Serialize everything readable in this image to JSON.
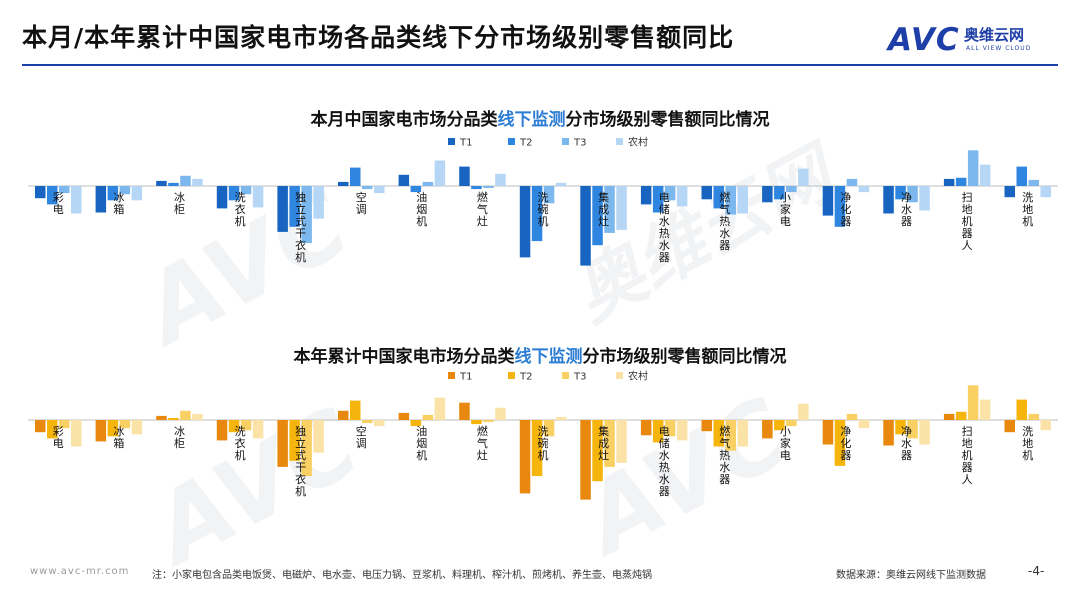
{
  "page": {
    "title": "本月/本年累计中国家电市场各品类线下分市场级别零售额同比",
    "logo": {
      "mark": "AVC",
      "cn": "奥维云网",
      "en": "ALL VIEW CLOUD"
    },
    "watermark": {
      "mark": "AVC",
      "cn": "奥维云网",
      "en": "ALL VIEW CLOUD"
    },
    "footer_site": "www.avc-mr.com",
    "footer_note": "注：小家电包含品类电饭煲、电磁炉、电水壶、电压力锅、豆浆机、料理机、榨汁机、煎烤机、养生壶、电蒸炖锅",
    "footer_source": "数据来源：奥维云网线下监测数据",
    "page_number": "-4-"
  },
  "chart_data": [
    {
      "type": "bar",
      "title_parts": [
        "本月中国家电市场分品类",
        "线下监测",
        "分市场级别零售额同比情况"
      ],
      "categories": [
        "彩电",
        "冰箱",
        "冰柜",
        "洗衣机",
        "独立式干衣机",
        "空调",
        "油烟机",
        "燃气灶",
        "洗碗机",
        "集成灶",
        "电储水热水器",
        "燃气热水器",
        "小家电",
        "净化器",
        "净水器",
        "扫地机器人",
        "洗地机"
      ],
      "series": [
        {
          "name": "T1",
          "color": "#1765c0",
          "values": [
            -12,
            -26,
            5,
            -22,
            -45,
            4,
            11,
            19,
            -70,
            -78,
            -18,
            -13,
            -16,
            -29,
            -27,
            7,
            -11
          ]
        },
        {
          "name": "T2",
          "color": "#2f86e0",
          "values": [
            -18,
            -14,
            3,
            -14,
            -40,
            18,
            -6,
            -3,
            -54,
            -58,
            -26,
            -22,
            -13,
            -40,
            -13,
            8,
            19
          ]
        },
        {
          "name": "T3",
          "color": "#7cb8ee",
          "values": [
            -7,
            -8,
            10,
            -8,
            -56,
            -3,
            4,
            -2,
            -17,
            -46,
            -14,
            -28,
            -6,
            7,
            -16,
            35,
            6
          ]
        },
        {
          "name": "农村",
          "color": "#b5d6f5",
          "values": [
            -27,
            -14,
            7,
            -21,
            -32,
            -7,
            25,
            12,
            3,
            -43,
            -20,
            -27,
            17,
            -6,
            -24,
            21,
            -11
          ]
        }
      ],
      "ylim": [
        -80,
        40
      ]
    },
    {
      "type": "bar",
      "title_parts": [
        "本年累计中国家电市场分品类",
        "线下监测",
        "分市场级别零售额同比情况"
      ],
      "categories": [
        "彩电",
        "冰箱",
        "冰柜",
        "洗衣机",
        "独立式干衣机",
        "空调",
        "油烟机",
        "燃气灶",
        "洗碗机",
        "集成灶",
        "电储水热水器",
        "燃气热水器",
        "小家电",
        "净化器",
        "净水器",
        "扫地机器人",
        "洗地机"
      ],
      "series": [
        {
          "name": "T1",
          "color": "#e8880e",
          "values": [
            -12,
            -21,
            4,
            -20,
            -46,
            9,
            7,
            17,
            -72,
            -78,
            -15,
            -11,
            -18,
            -24,
            -25,
            6,
            -12
          ]
        },
        {
          "name": "T2",
          "color": "#f5b50c",
          "values": [
            -18,
            -16,
            2,
            -12,
            -40,
            19,
            -6,
            -4,
            -55,
            -60,
            -22,
            -26,
            -10,
            -45,
            -14,
            8,
            20
          ]
        },
        {
          "name": "T3",
          "color": "#f8d063",
          "values": [
            -8,
            -8,
            9,
            -10,
            -55,
            -3,
            5,
            -2,
            -16,
            -46,
            -16,
            -30,
            -6,
            6,
            -18,
            34,
            6
          ]
        },
        {
          "name": "农村",
          "color": "#fbe3a8",
          "values": [
            -26,
            -14,
            6,
            -18,
            -32,
            -6,
            22,
            12,
            3,
            -42,
            -20,
            -26,
            16,
            -8,
            -24,
            20,
            -10
          ]
        }
      ],
      "ylim": [
        -80,
        40
      ]
    }
  ]
}
